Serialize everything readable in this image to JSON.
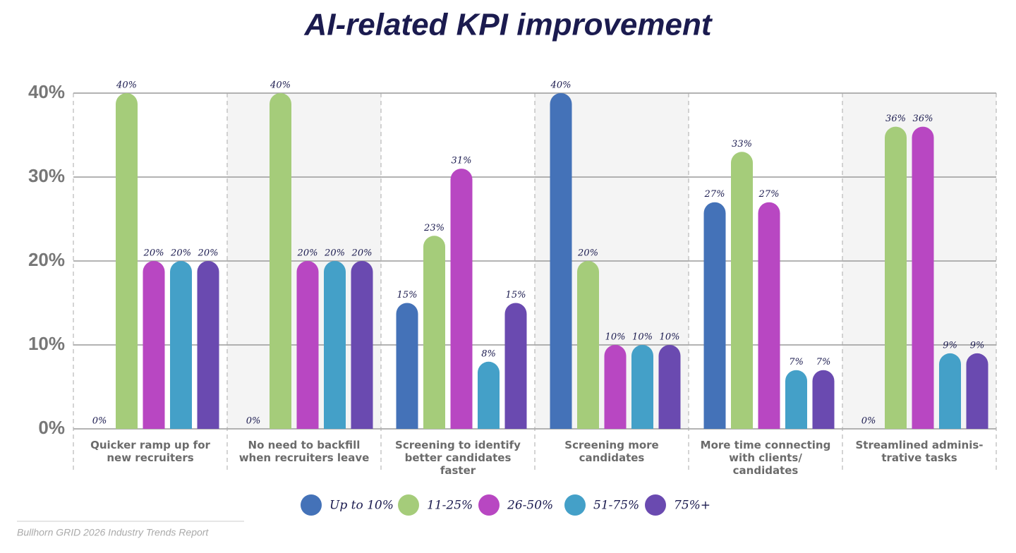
{
  "chart_data": {
    "type": "bar",
    "title": "AI-related KPI improvement",
    "categories": [
      "Quicker ramp up for\nnew recruiters",
      "No need to backfill\nwhen recruiters leave",
      "Screening to identify\nbetter candidates\nfaster",
      "Screening more\ncandidates",
      "More time connecting\nwith clients/\ncandidates",
      "Streamlined adminis-\ntrative tasks"
    ],
    "series": [
      {
        "name": "Up to 10%",
        "color": "#4472b8",
        "values": [
          0,
          0,
          15,
          40,
          27,
          0
        ],
        "value_labels": [
          "0%",
          "0%",
          "15%",
          "40%",
          "27%",
          "0%"
        ]
      },
      {
        "name": "11-25%",
        "color": "#a5cc7a",
        "values": [
          40,
          40,
          23,
          20,
          33,
          36
        ],
        "value_labels": [
          "40%",
          "40%",
          "23%",
          "20%",
          "33%",
          "36%"
        ]
      },
      {
        "name": "26-50%",
        "color": "#b847c2",
        "values": [
          20,
          20,
          31,
          10,
          27,
          36
        ],
        "value_labels": [
          "20%",
          "20%",
          "31%",
          "10%",
          "27%",
          "36%"
        ]
      },
      {
        "name": "51-75%",
        "color": "#44a0c8",
        "values": [
          20,
          20,
          8,
          10,
          7,
          9
        ],
        "value_labels": [
          "20%",
          "20%",
          "8%",
          "10%",
          "7%",
          "9%"
        ]
      },
      {
        "name": "75%+",
        "color": "#6a4ab0",
        "values": [
          20,
          20,
          15,
          10,
          7,
          9
        ],
        "value_labels": [
          "20%",
          "20%",
          "15%",
          "10%",
          "7%",
          "9%"
        ]
      }
    ],
    "ylim": [
      0,
      40
    ],
    "yticks": [
      {
        "value": 0,
        "label": "0%"
      },
      {
        "value": 10,
        "label": "10%"
      },
      {
        "value": 20,
        "label": "20%"
      },
      {
        "value": 30,
        "label": "30%"
      },
      {
        "value": 40,
        "label": "40%"
      }
    ],
    "grid": true,
    "legend": "bottom",
    "source": "Bullhorn GRID 2026 Industry Trends Report"
  }
}
